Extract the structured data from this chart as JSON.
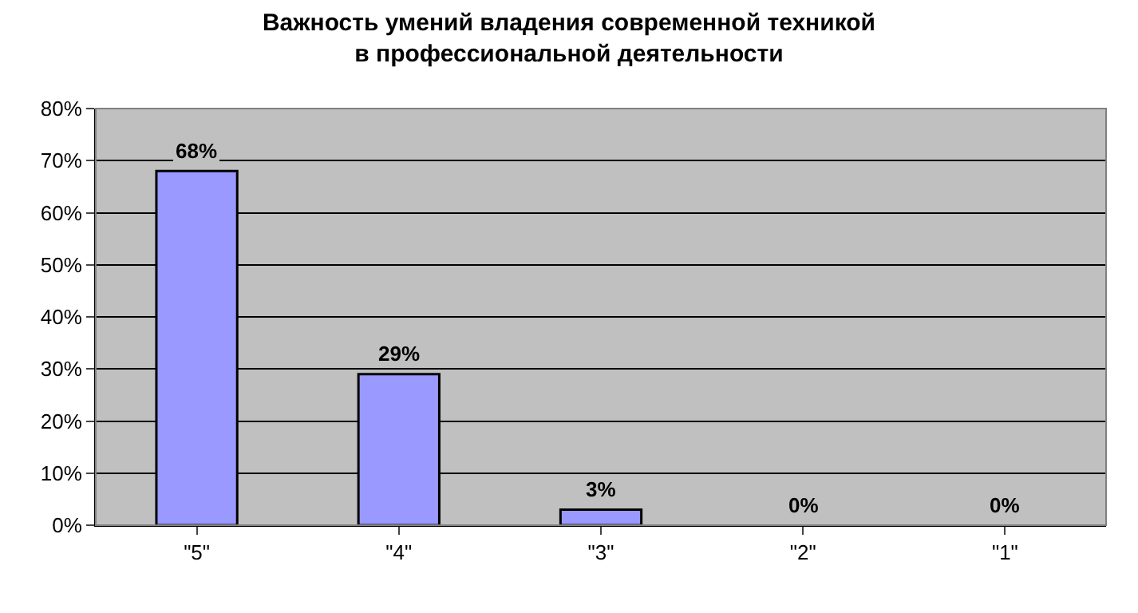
{
  "chart_data": {
    "type": "bar",
    "title": "Важность умений владения современной техникой в профессиональной деятельности",
    "categories": [
      "\"5\"",
      "\"4\"",
      "\"3\"",
      "\"2\"",
      "\"1\""
    ],
    "values": [
      68,
      29,
      3,
      0,
      0
    ],
    "value_labels": [
      "68%",
      "29%",
      "3%",
      "0%",
      "0%"
    ],
    "color": "#9999ff",
    "ylim": [
      0,
      80
    ],
    "yticks": [
      {
        "value": 0,
        "label": "0%"
      },
      {
        "value": 10,
        "label": "10%"
      },
      {
        "value": 20,
        "label": "20%"
      },
      {
        "value": 30,
        "label": "30%"
      },
      {
        "value": 40,
        "label": "40%"
      },
      {
        "value": 50,
        "label": "50%"
      },
      {
        "value": 60,
        "label": "60%"
      },
      {
        "value": 70,
        "label": "70%"
      },
      {
        "value": 80,
        "label": "80%"
      }
    ],
    "grid": "y",
    "legend": false
  }
}
